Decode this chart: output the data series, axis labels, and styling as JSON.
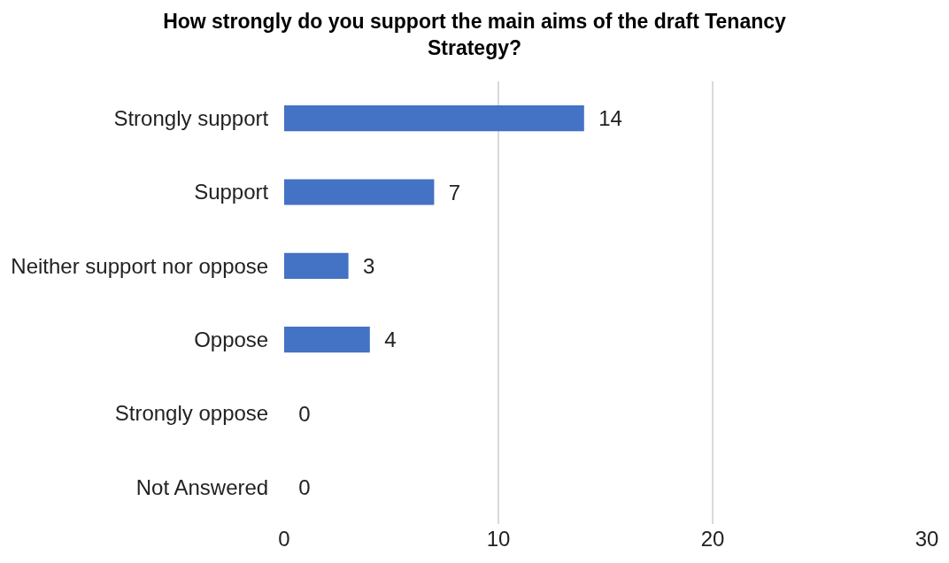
{
  "chart_data": {
    "type": "bar",
    "orientation": "horizontal",
    "title": "How strongly do you support the main aims of the draft Tenancy Strategy?",
    "categories": [
      "Strongly support",
      "Support",
      "Neither support nor oppose",
      "Oppose",
      "Strongly oppose",
      "Not Answered"
    ],
    "values": [
      14,
      7,
      3,
      4,
      0,
      0
    ],
    "color": "#4472c4",
    "xlim": [
      0,
      30
    ],
    "xticks": [
      0,
      10,
      20,
      30
    ],
    "grid": "x",
    "data_labels": true
  }
}
